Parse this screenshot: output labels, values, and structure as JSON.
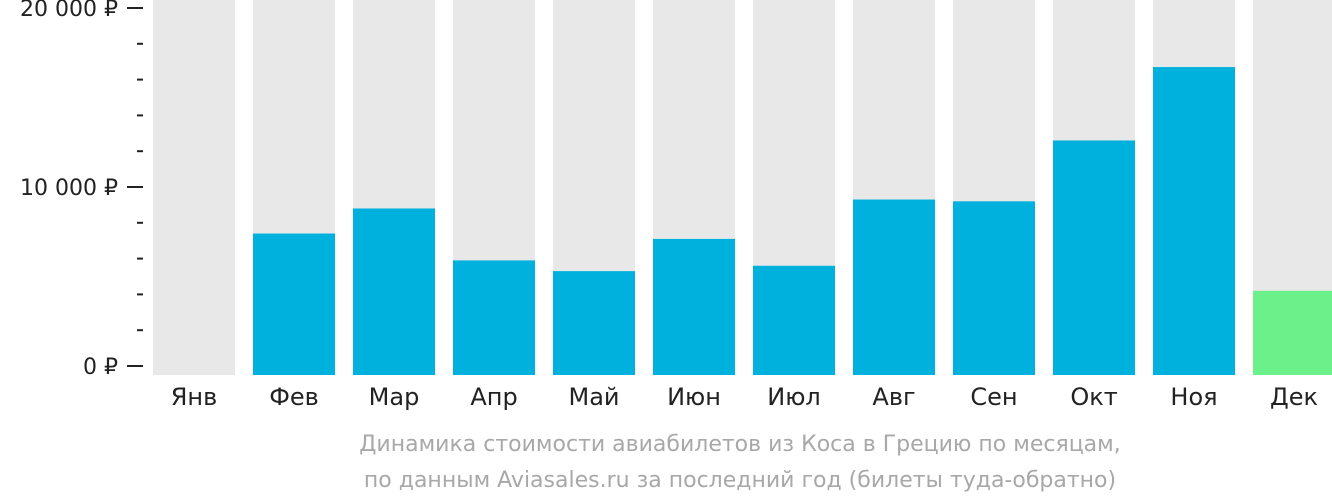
{
  "chart_data": {
    "type": "bar",
    "categories": [
      "Янв",
      "Фев",
      "Мар",
      "Апр",
      "Май",
      "Июн",
      "Июл",
      "Авг",
      "Сен",
      "Окт",
      "Ноя",
      "Дек"
    ],
    "values": [
      null,
      7400,
      8800,
      5900,
      5300,
      7100,
      5600,
      9300,
      9200,
      12600,
      16700,
      4200
    ],
    "ylim": [
      0,
      20000
    ],
    "yticks_major": [
      0,
      10000,
      20000
    ],
    "ytick_labels": [
      "0 ₽",
      "10 000 ₽",
      "20 000 ₽"
    ],
    "yticks_minor_step": 2000,
    "highlight_index": 11,
    "caption_line1": "Динамика стоимости авиабилетов из Коса в Грецию по месяцам,",
    "caption_line2": "по данным Aviasales.ru за последний год (билеты туда-обратно)",
    "colors": {
      "bar": "#00b0dd",
      "bar_highlight": "#6cf089",
      "background_column": "#e8e8e8",
      "axis": "#222222",
      "caption": "#a8a8a8"
    }
  }
}
